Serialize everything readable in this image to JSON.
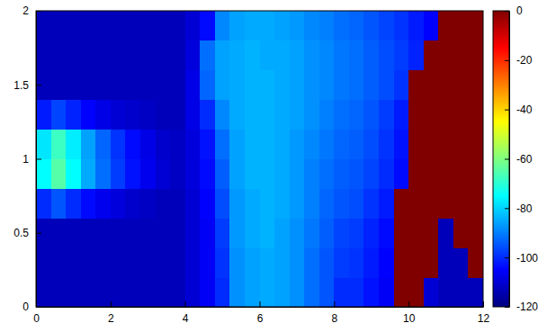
{
  "chart_data": {
    "type": "heatmap",
    "x_bins": [
      0,
      0.4,
      0.8,
      1.2,
      1.6,
      2,
      2.4,
      2.8,
      3.2,
      3.6,
      4,
      4.4,
      4.8,
      5.2,
      5.6,
      6,
      6.4,
      6.8,
      7.2,
      7.6,
      8,
      8.4,
      8.8,
      9.2,
      9.6,
      10,
      10.4,
      10.8,
      11.2,
      11.6,
      12
    ],
    "y_bins": [
      0,
      0.2,
      0.4,
      0.6,
      0.8,
      1,
      1.2,
      1.4,
      1.6,
      1.8,
      2
    ],
    "values": [
      [
        -113,
        -113,
        -113,
        -113,
        -113,
        -113,
        -113,
        -113,
        -113,
        -113,
        -110,
        -106,
        -100,
        -88,
        -86,
        -85,
        -86,
        -88,
        -92,
        -95,
        -100,
        -100,
        -103,
        -106,
        0,
        0,
        -110,
        -113,
        -113,
        -113
      ],
      [
        -113,
        -113,
        -113,
        -113,
        -113,
        -113,
        -113,
        -113,
        -113,
        -113,
        -110,
        -106,
        -99,
        -88,
        -86,
        -85,
        -86,
        -88,
        -92,
        -95,
        -98,
        -99,
        -102,
        -105,
        0,
        0,
        0,
        -113,
        -113,
        0
      ],
      [
        -113,
        -113,
        -113,
        -113,
        -113,
        -113,
        -113,
        -113,
        -113,
        -113,
        -110,
        -106,
        -98,
        -87,
        -85,
        -84,
        -86,
        -88,
        -91,
        -94,
        -97,
        -98,
        -101,
        -104,
        0,
        0,
        0,
        -113,
        0,
        0
      ],
      [
        -100,
        -95,
        -100,
        -104,
        -107,
        -109,
        -111,
        -112,
        -113,
        -113,
        -110,
        -105,
        -96,
        -87,
        -85,
        -84,
        -85,
        -87,
        -90,
        -93,
        -95,
        -96,
        -99,
        -102,
        0,
        0,
        0,
        0,
        0,
        0
      ],
      [
        -75,
        -65,
        -75,
        -85,
        -92,
        -98,
        -103,
        -107,
        -110,
        -112,
        -109,
        -104,
        -94,
        -86,
        -84,
        -84,
        -85,
        -87,
        -90,
        -92,
        -94,
        -95,
        -97,
        -100,
        -104,
        0,
        0,
        0,
        0,
        0
      ],
      [
        -78,
        -68,
        -77,
        -86,
        -93,
        -99,
        -104,
        -108,
        -111,
        -112,
        -109,
        -103,
        -92,
        -86,
        -84,
        -84,
        -85,
        -87,
        -89,
        -91,
        -93,
        -94,
        -96,
        -99,
        -103,
        0,
        0,
        0,
        0,
        0
      ],
      [
        -102,
        -97,
        -101,
        -105,
        -108,
        -110,
        -111,
        -112,
        -113,
        -113,
        -108,
        -100,
        -89,
        -85,
        -84,
        -84,
        -85,
        -86,
        -88,
        -90,
        -92,
        -93,
        -95,
        -98,
        -102,
        0,
        0,
        0,
        0,
        0
      ],
      [
        -113,
        -113,
        -113,
        -113,
        -113,
        -113,
        -113,
        -113,
        -113,
        -113,
        -108,
        -93,
        -86,
        -85,
        -84,
        -84,
        -85,
        -86,
        -88,
        -89,
        -91,
        -92,
        -94,
        -96,
        -99,
        0,
        0,
        0,
        0,
        0
      ],
      [
        -113,
        -113,
        -113,
        -113,
        -113,
        -113,
        -113,
        -113,
        -113,
        -113,
        -109,
        -92,
        -86,
        -85,
        -84,
        -85,
        -85,
        -86,
        -88,
        -89,
        -91,
        -92,
        -94,
        -96,
        -98,
        -101,
        0,
        0,
        0,
        0
      ],
      [
        -113,
        -113,
        -113,
        -113,
        -113,
        -113,
        -113,
        -113,
        -113,
        -113,
        -110,
        -104,
        -89,
        -86,
        -85,
        -85,
        -86,
        -87,
        -89,
        -90,
        -92,
        -93,
        -95,
        -97,
        -99,
        -102,
        -105,
        0,
        0,
        0
      ]
    ],
    "xlim": [
      0,
      12
    ],
    "ylim": [
      0,
      2
    ],
    "xticks": [
      0,
      2,
      4,
      6,
      8,
      10,
      12
    ],
    "yticks": [
      0,
      0.5,
      1,
      1.5,
      2
    ],
    "colorbar": {
      "range": [
        -120,
        0
      ],
      "ticks": [
        0,
        -20,
        -40,
        -60,
        -80,
        -100,
        -120
      ]
    }
  }
}
